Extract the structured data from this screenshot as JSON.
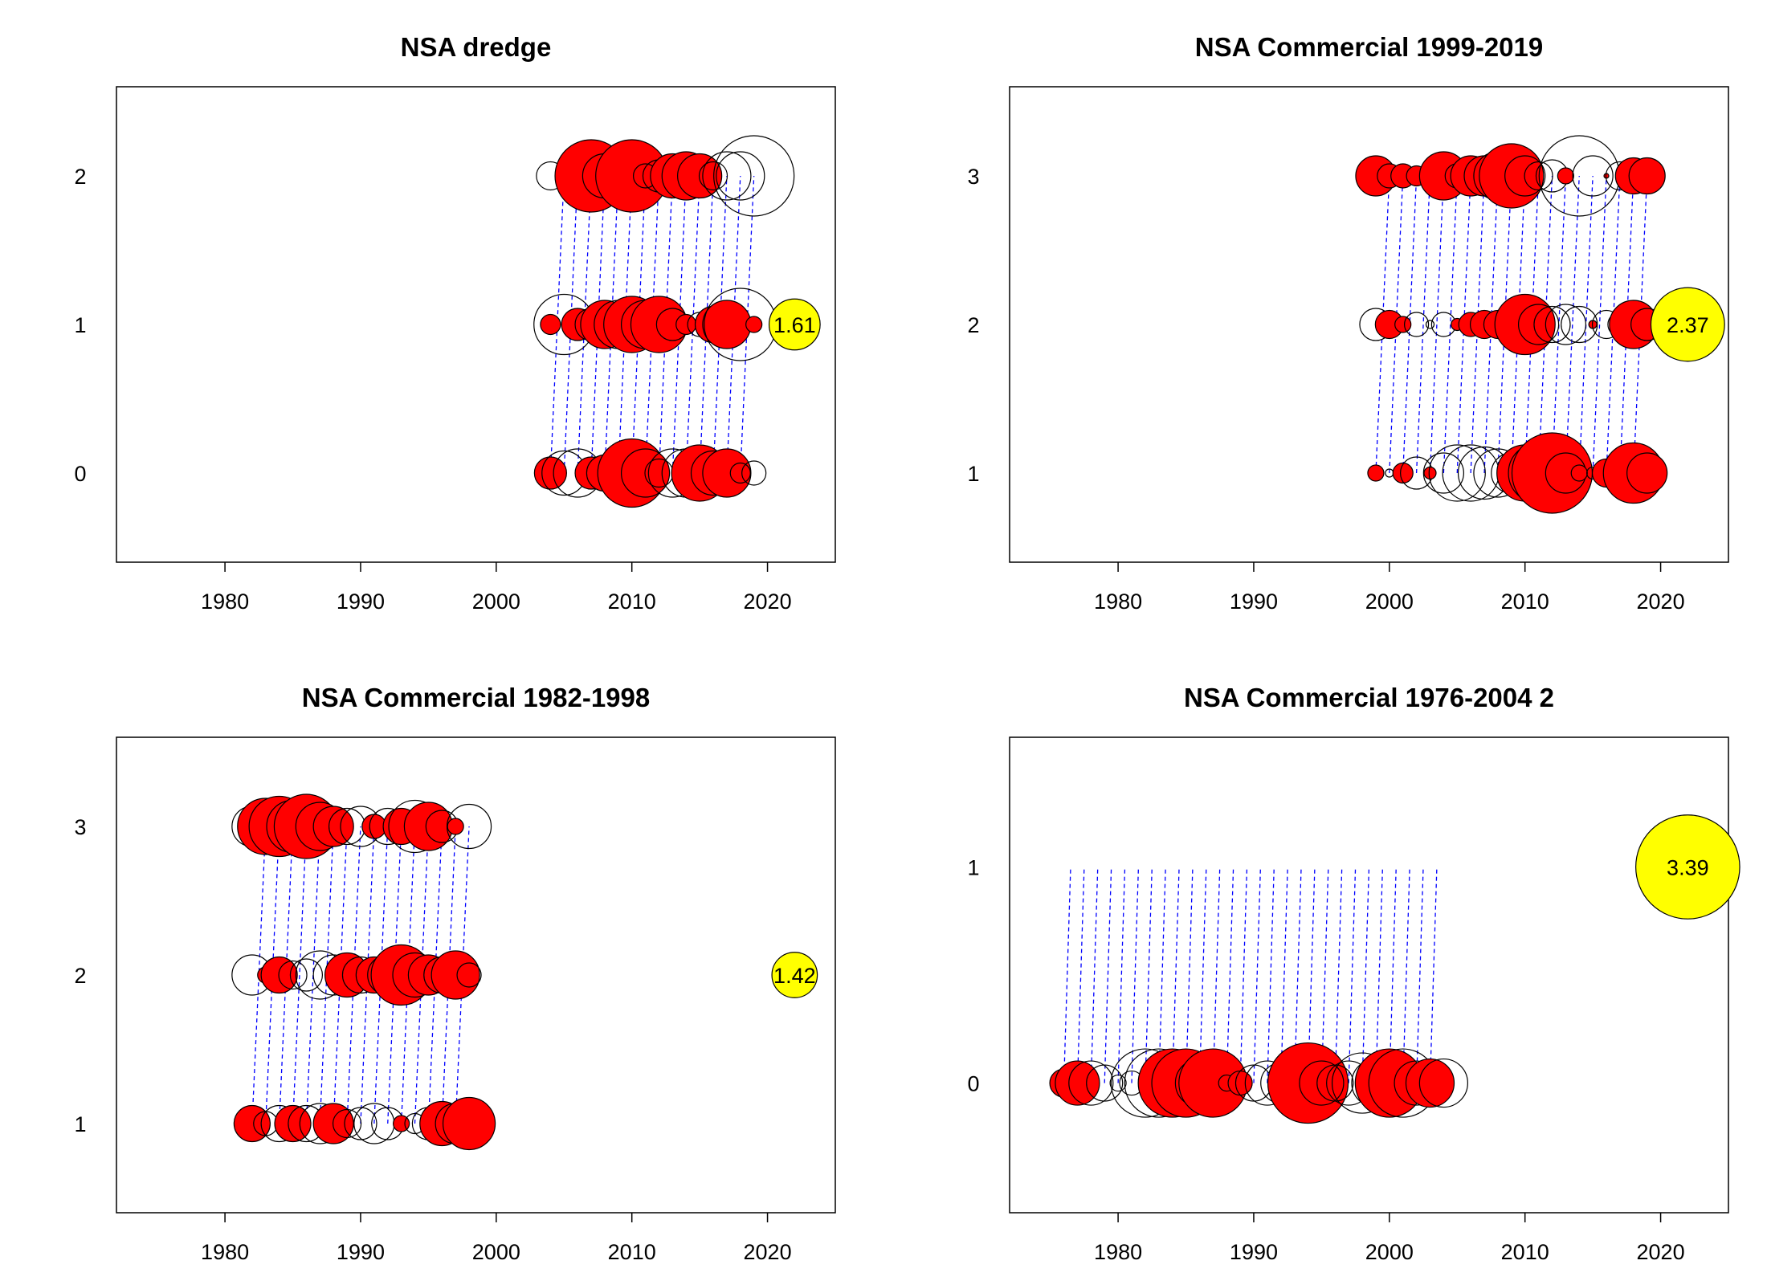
{
  "colors": {
    "positive": "#ff0000",
    "negative": "none",
    "outline": "#000000",
    "link_line": "#0000ff",
    "average_bubble": "#ffff00"
  },
  "chart_data": [
    {
      "type": "scatter",
      "title": "NSA dredge",
      "xlabel": "",
      "ylabel": "",
      "xlim": [
        1972,
        2025
      ],
      "ylim": [
        -0.6,
        2.6
      ],
      "xticks": [
        1980,
        1990,
        2000,
        2010,
        2020
      ],
      "yticks": [
        0,
        1,
        2
      ],
      "average": {
        "x": 2022,
        "y": 1,
        "label": "1.61",
        "size": 1.61
      },
      "link_lines": {
        "from_y": 0,
        "to_y": 2,
        "x_start": 2004,
        "x_end": 2018,
        "shift": 1
      },
      "rows": [
        {
          "y": 2,
          "x": [
            2004,
            2005,
            2006,
            2007,
            2008,
            2009,
            2010,
            2011,
            2012,
            2013,
            2014,
            2015,
            2016,
            2017,
            2018,
            2019
          ],
          "size": [
            0.35,
            0.05,
            0.3,
            0.9,
            0.55,
            0.55,
            0.9,
            0.3,
            0.4,
            0.55,
            0.6,
            0.55,
            0.35,
            0.6,
            0.6,
            1.0
          ],
          "filled": [
            false,
            true,
            false,
            true,
            true,
            false,
            true,
            false,
            false,
            true,
            true,
            true,
            false,
            false,
            false,
            false
          ]
        },
        {
          "y": 1,
          "x": [
            2004,
            2005,
            2006,
            2007,
            2008,
            2009,
            2010,
            2011,
            2012,
            2013,
            2014,
            2015,
            2016,
            2017,
            2018,
            2019
          ],
          "size": [
            0.25,
            0.75,
            0.4,
            0.4,
            0.6,
            0.6,
            0.7,
            0.6,
            0.7,
            0.4,
            0.25,
            0.3,
            0.45,
            0.6,
            0.9,
            0.2
          ],
          "filled": [
            true,
            false,
            true,
            false,
            true,
            false,
            true,
            false,
            true,
            false,
            true,
            false,
            true,
            true,
            false,
            true
          ]
        },
        {
          "y": 0,
          "x": [
            2004,
            2005,
            2006,
            2007,
            2008,
            2009,
            2010,
            2011,
            2012,
            2013,
            2014,
            2015,
            2016,
            2017,
            2018,
            2019
          ],
          "size": [
            0.4,
            0.55,
            0.6,
            0.4,
            0.45,
            0.5,
            0.85,
            0.6,
            0.35,
            0.6,
            0.6,
            0.7,
            0.55,
            0.6,
            0.25,
            0.3
          ],
          "filled": [
            true,
            false,
            false,
            true,
            true,
            true,
            true,
            true,
            false,
            false,
            false,
            true,
            true,
            true,
            false,
            false
          ]
        }
      ]
    },
    {
      "type": "scatter",
      "title": "NSA Commercial 1999-2019",
      "xlabel": "",
      "ylabel": "",
      "xlim": [
        1972,
        2025
      ],
      "ylim": [
        0.4,
        3.6
      ],
      "xticks": [
        1980,
        1990,
        2000,
        2010,
        2020
      ],
      "yticks": [
        1,
        2,
        3
      ],
      "average": {
        "x": 2022,
        "y": 2,
        "label": "2.37",
        "size": 2.37
      },
      "link_lines": {
        "from_y": 1,
        "to_y": 3,
        "x_start": 1999,
        "x_end": 2018,
        "shift": 1
      },
      "rows": [
        {
          "y": 3,
          "x": [
            1999,
            2000,
            2001,
            2002,
            2003,
            2004,
            2005,
            2006,
            2007,
            2008,
            2009,
            2010,
            2011,
            2012,
            2013,
            2014,
            2015,
            2016,
            2017,
            2018,
            2019
          ],
          "size": [
            0.5,
            0.3,
            0.3,
            0.25,
            0.25,
            0.6,
            0.3,
            0.5,
            0.5,
            0.6,
            0.8,
            0.5,
            0.35,
            0.4,
            0.2,
            1.0,
            0.5,
            0.05,
            0.35,
            0.45,
            0.45
          ],
          "filled": [
            true,
            true,
            true,
            true,
            false,
            true,
            false,
            true,
            true,
            false,
            true,
            false,
            false,
            false,
            true,
            false,
            false,
            true,
            false,
            true,
            true
          ]
        },
        {
          "y": 2,
          "x": [
            1999,
            2000,
            2001,
            2002,
            2003,
            2004,
            2005,
            2006,
            2007,
            2008,
            2009,
            2010,
            2011,
            2012,
            2013,
            2014,
            2015,
            2016,
            2017,
            2018,
            2019
          ],
          "size": [
            0.4,
            0.35,
            0.2,
            0.3,
            0.1,
            0.3,
            0.15,
            0.3,
            0.35,
            0.35,
            0.25,
            0.75,
            0.5,
            0.45,
            0.5,
            0.45,
            0.1,
            0.35,
            0.3,
            0.6,
            0.4
          ],
          "filled": [
            false,
            true,
            true,
            false,
            false,
            false,
            true,
            true,
            true,
            true,
            false,
            true,
            false,
            false,
            false,
            false,
            true,
            false,
            false,
            true,
            false
          ]
        },
        {
          "y": 1,
          "x": [
            1999,
            2000,
            2001,
            2002,
            2003,
            2004,
            2005,
            2006,
            2007,
            2008,
            2009,
            2010,
            2011,
            2012,
            2013,
            2014,
            2015,
            2016,
            2017,
            2018,
            2019
          ],
          "size": [
            0.2,
            0.1,
            0.25,
            0.4,
            0.15,
            0.5,
            0.7,
            0.7,
            0.65,
            0.6,
            0.5,
            0.7,
            0.75,
            1.0,
            0.5,
            0.2,
            0.15,
            0.35,
            0.3,
            0.75,
            0.5
          ],
          "filled": [
            true,
            false,
            true,
            false,
            true,
            false,
            false,
            false,
            false,
            false,
            false,
            true,
            true,
            true,
            false,
            true,
            false,
            true,
            false,
            true,
            true
          ]
        }
      ]
    },
    {
      "type": "scatter",
      "title": "NSA Commercial 1982-1998",
      "xlabel": "",
      "ylabel": "",
      "xlim": [
        1972,
        2025
      ],
      "ylim": [
        0.4,
        3.6
      ],
      "xticks": [
        1980,
        1990,
        2000,
        2010,
        2020
      ],
      "yticks": [
        1,
        2,
        3
      ],
      "average": {
        "x": 2022,
        "y": 2,
        "label": "1.42",
        "size": 1.42
      },
      "link_lines": {
        "from_y": 1,
        "to_y": 3,
        "x_start": 1982,
        "x_end": 1997,
        "shift": 1
      },
      "rows": [
        {
          "y": 3,
          "x": [
            1982,
            1983,
            1984,
            1985,
            1986,
            1987,
            1988,
            1989,
            1990,
            1991,
            1992,
            1993,
            1994,
            1995,
            1996,
            1997,
            1998
          ],
          "size": [
            0.5,
            0.7,
            0.75,
            0.65,
            0.8,
            0.6,
            0.5,
            0.45,
            0.5,
            0.3,
            0.45,
            0.45,
            0.65,
            0.6,
            0.4,
            0.2,
            0.55
          ],
          "filled": [
            false,
            true,
            true,
            false,
            true,
            true,
            true,
            false,
            false,
            true,
            false,
            true,
            false,
            true,
            false,
            true,
            false
          ]
        },
        {
          "y": 2,
          "x": [
            1982,
            1983,
            1984,
            1985,
            1986,
            1987,
            1988,
            1989,
            1990,
            1991,
            1992,
            1993,
            1994,
            1995,
            1996,
            1997,
            1998
          ],
          "size": [
            0.5,
            0.2,
            0.45,
            0.35,
            0.4,
            0.6,
            0.5,
            0.55,
            0.45,
            0.45,
            0.5,
            0.75,
            0.55,
            0.5,
            0.45,
            0.6,
            0.3
          ],
          "filled": [
            false,
            true,
            true,
            false,
            false,
            false,
            false,
            true,
            false,
            true,
            false,
            true,
            false,
            true,
            false,
            true,
            false
          ]
        },
        {
          "y": 1,
          "x": [
            1982,
            1983,
            1984,
            1985,
            1986,
            1987,
            1988,
            1989,
            1990,
            1991,
            1992,
            1993,
            1994,
            1995,
            1996,
            1997,
            1998
          ],
          "size": [
            0.45,
            0.3,
            0.45,
            0.45,
            0.45,
            0.5,
            0.5,
            0.35,
            0.4,
            0.5,
            0.4,
            0.2,
            0.25,
            0.4,
            0.55,
            0.5,
            0.65
          ],
          "filled": [
            true,
            false,
            false,
            true,
            false,
            false,
            true,
            false,
            false,
            false,
            false,
            true,
            false,
            false,
            true,
            false,
            true
          ]
        }
      ]
    },
    {
      "type": "scatter",
      "title": "NSA Commercial 1976-2004 2",
      "xlabel": "",
      "ylabel": "",
      "xlim": [
        1972,
        2025
      ],
      "ylim": [
        -0.6,
        1.6
      ],
      "xticks": [
        1980,
        1990,
        2000,
        2010,
        2020
      ],
      "yticks": [
        0,
        1
      ],
      "average": {
        "x": 2022,
        "y": 1,
        "label": "3.39",
        "size": 3.39
      },
      "link_lines": {
        "from_y": 0,
        "to_y": 1,
        "x_start": 1976,
        "x_end": 2003,
        "shift": 1
      },
      "rows": [
        {
          "y": 0,
          "x": [
            1976,
            1977,
            1978,
            1979,
            1980,
            1981,
            1982,
            1983,
            1984,
            1985,
            1986,
            1987,
            1988,
            1989,
            1990,
            1991,
            1992,
            1993,
            1994,
            1995,
            1996,
            1997,
            1998,
            1999,
            2000,
            2001,
            2002,
            2003,
            2004
          ],
          "size": [
            0.35,
            0.55,
            0.55,
            0.45,
            0.2,
            0.3,
            0.85,
            0.85,
            0.85,
            0.85,
            0.6,
            0.85,
            0.2,
            0.3,
            0.45,
            0.55,
            0.5,
            0.55,
            1.0,
            0.55,
            0.45,
            0.55,
            0.75,
            0.6,
            0.85,
            0.85,
            0.55,
            0.6,
            0.6
          ],
          "filled": [
            true,
            true,
            false,
            false,
            false,
            false,
            false,
            false,
            true,
            true,
            false,
            true,
            false,
            true,
            false,
            false,
            false,
            false,
            true,
            false,
            false,
            false,
            false,
            false,
            true,
            false,
            false,
            true,
            false
          ]
        }
      ]
    }
  ]
}
